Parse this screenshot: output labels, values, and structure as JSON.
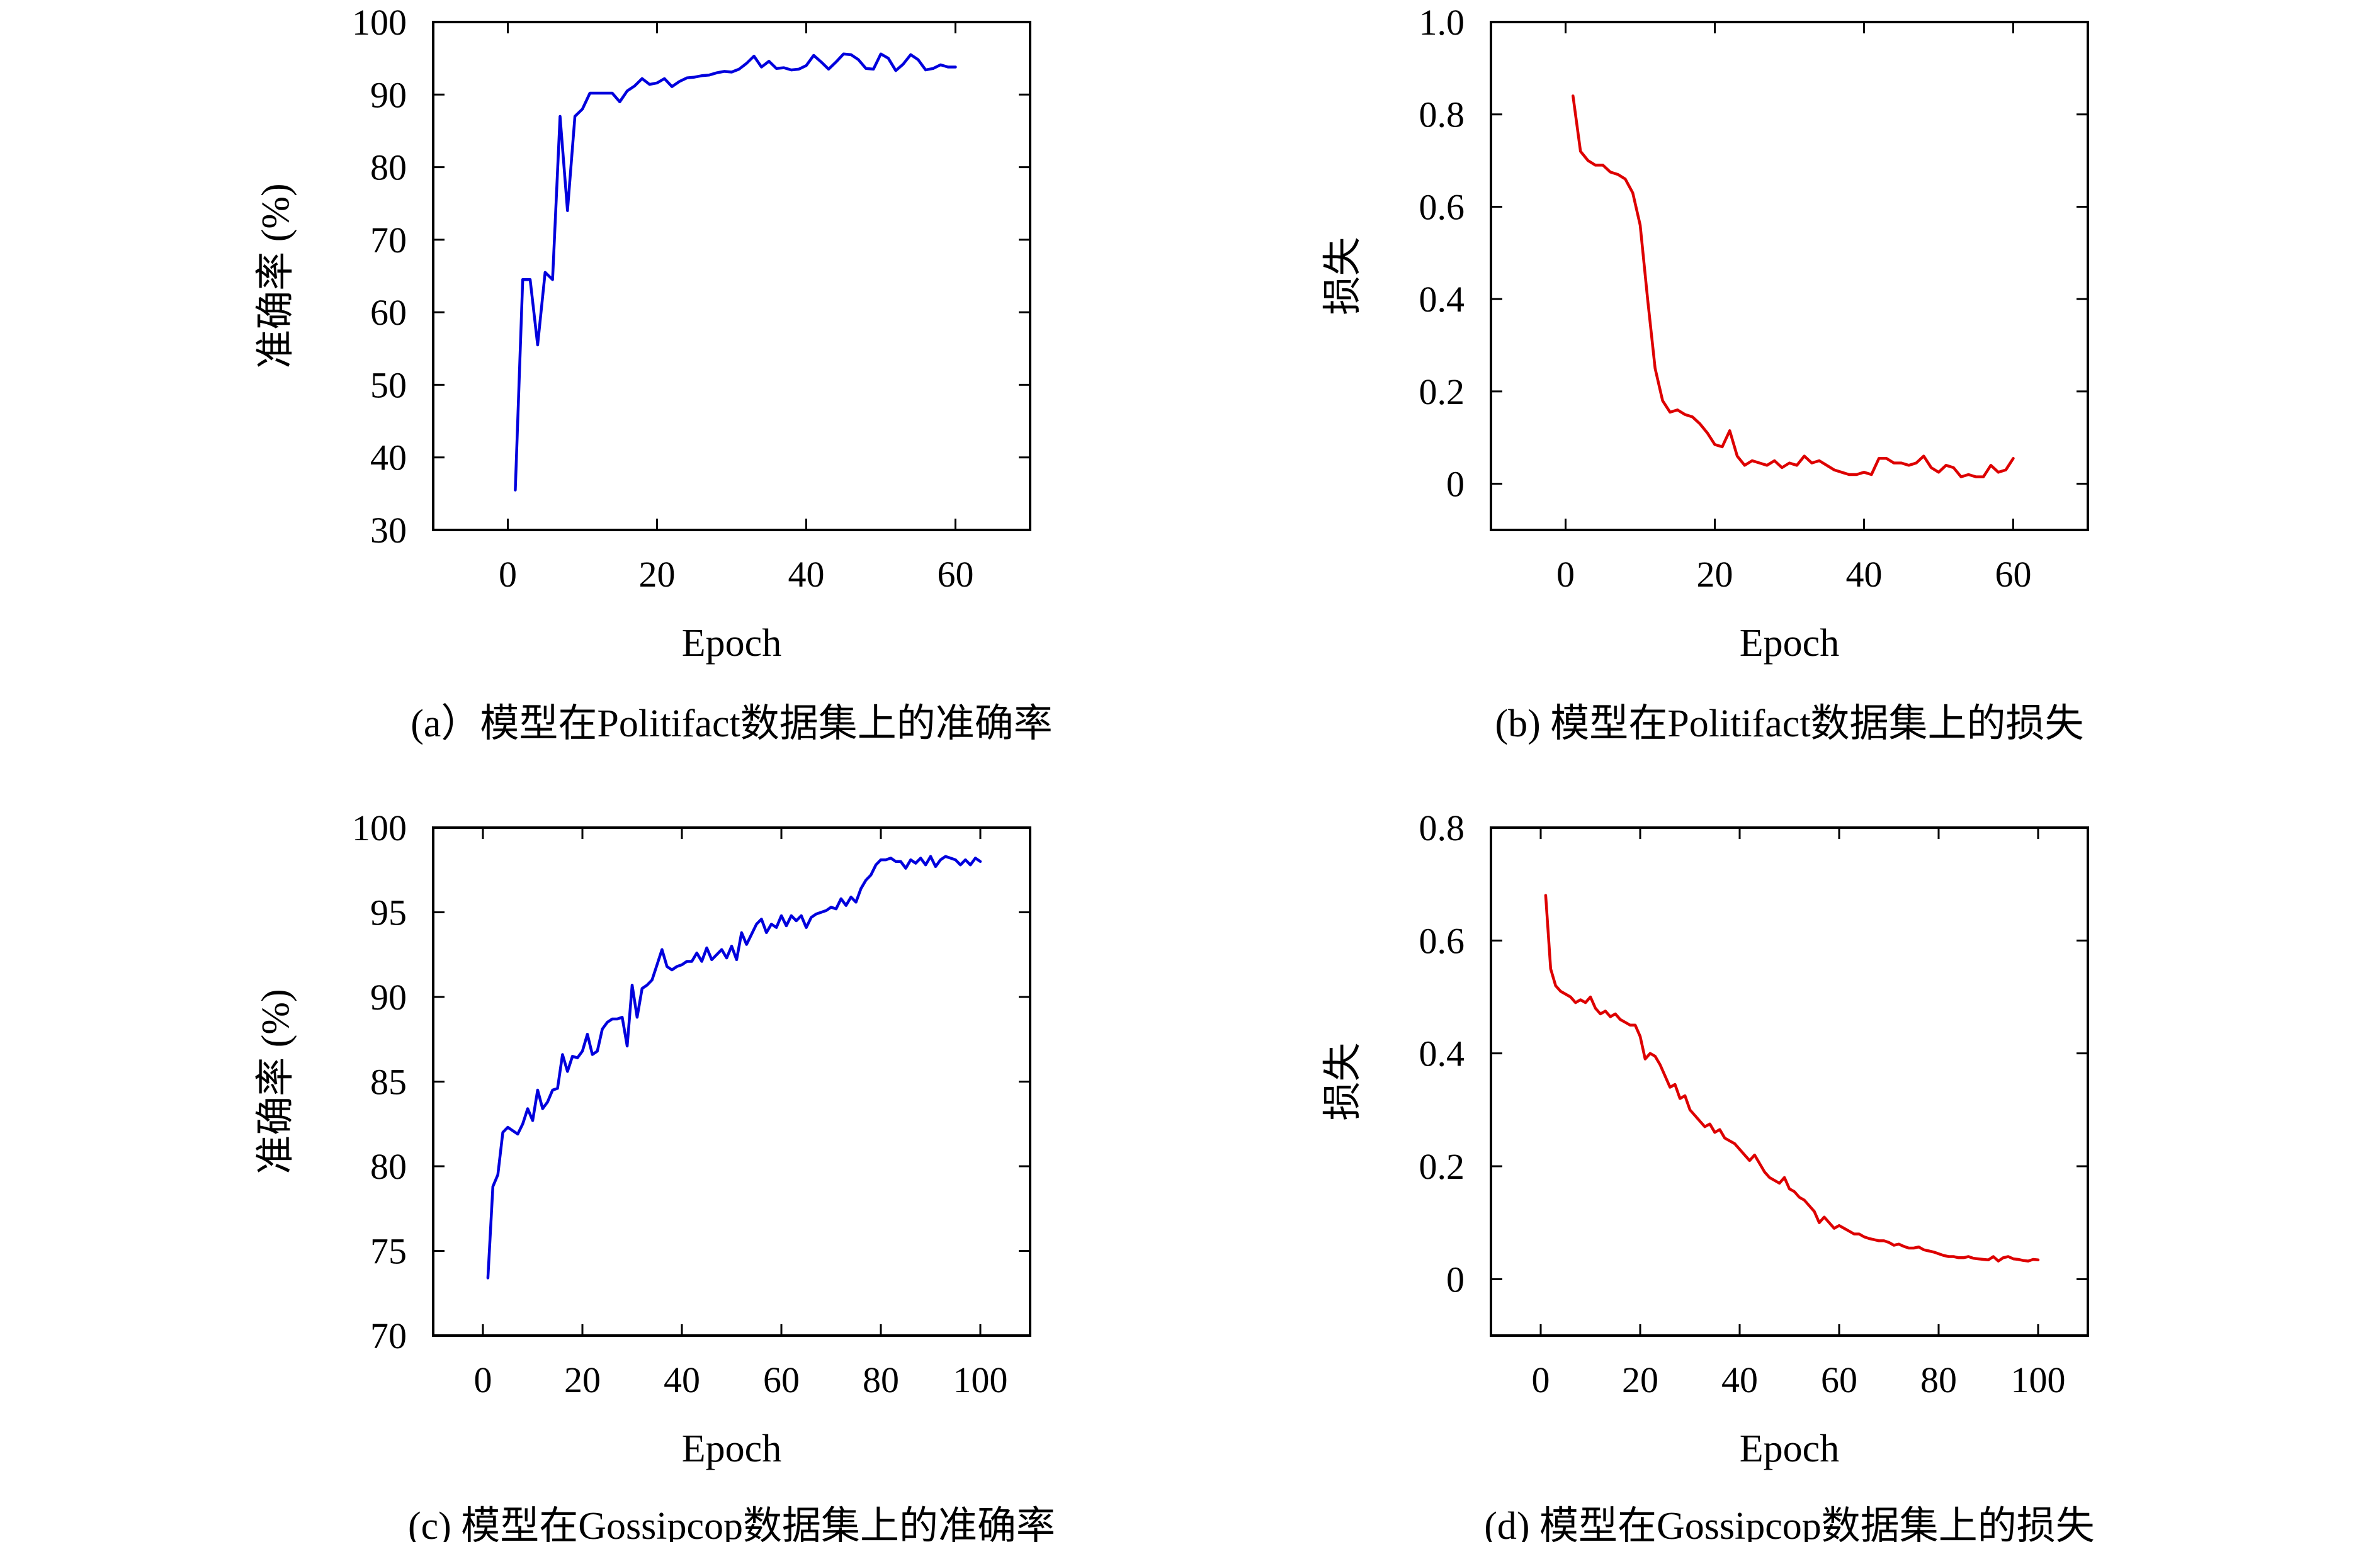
{
  "figure": {
    "colors": {
      "accuracy": "#0000dd",
      "loss": "#dd0000",
      "axis": "#000000"
    }
  },
  "chart_data": [
    {
      "id": "a",
      "type": "line",
      "caption": "(a）模型在Politifact数据集上的准确率",
      "xlabel": "Epoch",
      "ylabel": "准确率 (%)",
      "xlim": [
        -10,
        70
      ],
      "ylim": [
        30,
        100
      ],
      "xticks": [
        0,
        20,
        40,
        60
      ],
      "yticks": [
        30,
        40,
        50,
        60,
        70,
        80,
        90,
        100
      ],
      "ytick_labels": [
        "30",
        "40",
        "50",
        "60",
        "70",
        "80",
        "90",
        "100"
      ],
      "grid": false,
      "color": "#0000dd",
      "series": [
        {
          "x": [
            1,
            2,
            3,
            4,
            5,
            6,
            7,
            8,
            9,
            10,
            11,
            12,
            13,
            14,
            15,
            16,
            17,
            18,
            19,
            20,
            21,
            22,
            23,
            24,
            25,
            26,
            27,
            28,
            29,
            30,
            31,
            32,
            33,
            34,
            35,
            36,
            37,
            38,
            39,
            40,
            41,
            42,
            43,
            44,
            45,
            46,
            47,
            48,
            49,
            50,
            51,
            52,
            53,
            54,
            55,
            56,
            57,
            58,
            59,
            60
          ],
          "values": [
            35.5,
            64.5,
            64.5,
            55.5,
            65.5,
            64.5,
            87,
            74,
            87,
            88,
            90.2,
            90.2,
            90.2,
            90.2,
            89,
            90.5,
            91.2,
            92.2,
            91.4,
            91.6,
            92.2,
            91.1,
            91.8,
            92.3,
            92.4,
            92.6,
            92.7,
            93,
            93.2,
            93.1,
            93.5,
            94.3,
            95.3,
            93.8,
            94.6,
            93.6,
            93.7,
            93.4,
            93.5,
            94,
            95.4,
            94.5,
            93.5,
            94.5,
            95.6,
            95.5,
            94.8,
            93.6,
            93.5,
            95.6,
            95,
            93.3,
            94.2,
            95.5,
            94.8,
            93.4,
            93.6,
            94.1,
            93.8,
            93.8
          ]
        }
      ]
    },
    {
      "id": "b",
      "type": "line",
      "caption": "(b) 模型在Politifact数据集上的损失",
      "xlabel": "Epoch",
      "ylabel": "损失",
      "xlim": [
        -10,
        70
      ],
      "ylim": [
        -0.1,
        1.0
      ],
      "xticks": [
        0,
        20,
        40,
        60
      ],
      "yticks": [
        0,
        0.2,
        0.4,
        0.6,
        0.8,
        1.0
      ],
      "ytick_labels": [
        "0",
        "0.2",
        "0.4",
        "0.6",
        "0.8",
        "1.0"
      ],
      "grid": false,
      "color": "#dd0000",
      "series": [
        {
          "x": [
            1,
            2,
            3,
            4,
            5,
            6,
            7,
            8,
            9,
            10,
            11,
            12,
            13,
            14,
            15,
            16,
            17,
            18,
            19,
            20,
            21,
            22,
            23,
            24,
            25,
            26,
            27,
            28,
            29,
            30,
            31,
            32,
            33,
            34,
            35,
            36,
            37,
            38,
            39,
            40,
            41,
            42,
            43,
            44,
            45,
            46,
            47,
            48,
            49,
            50,
            51,
            52,
            53,
            54,
            55,
            56,
            57,
            58,
            59,
            60
          ],
          "values": [
            0.84,
            0.72,
            0.7,
            0.69,
            0.69,
            0.675,
            0.67,
            0.66,
            0.63,
            0.56,
            0.4,
            0.25,
            0.18,
            0.155,
            0.16,
            0.15,
            0.145,
            0.13,
            0.11,
            0.085,
            0.08,
            0.115,
            0.06,
            0.04,
            0.05,
            0.045,
            0.04,
            0.05,
            0.035,
            0.045,
            0.04,
            0.06,
            0.045,
            0.05,
            0.04,
            0.03,
            0.025,
            0.02,
            0.02,
            0.025,
            0.02,
            0.055,
            0.055,
            0.045,
            0.045,
            0.04,
            0.045,
            0.06,
            0.035,
            0.025,
            0.04,
            0.035,
            0.015,
            0.02,
            0.015,
            0.015,
            0.04,
            0.025,
            0.03,
            0.055
          ]
        }
      ]
    },
    {
      "id": "c",
      "type": "line",
      "caption": "(c) 模型在Gossipcop数据集上的准确率",
      "xlabel": "Epoch",
      "ylabel": "准确率 (%)",
      "xlim": [
        -10,
        110
      ],
      "ylim": [
        70,
        100
      ],
      "xticks": [
        0,
        20,
        40,
        60,
        80,
        100
      ],
      "yticks": [
        70,
        75,
        80,
        85,
        90,
        95,
        100
      ],
      "ytick_labels": [
        "70",
        "75",
        "80",
        "85",
        "90",
        "95",
        "100"
      ],
      "grid": false,
      "color": "#0000dd",
      "series": [
        {
          "x": [
            1,
            2,
            3,
            4,
            5,
            6,
            7,
            8,
            9,
            10,
            11,
            12,
            13,
            14,
            15,
            16,
            17,
            18,
            19,
            20,
            21,
            22,
            23,
            24,
            25,
            26,
            27,
            28,
            29,
            30,
            31,
            32,
            33,
            34,
            35,
            36,
            37,
            38,
            39,
            40,
            41,
            42,
            43,
            44,
            45,
            46,
            47,
            48,
            49,
            50,
            51,
            52,
            53,
            54,
            55,
            56,
            57,
            58,
            59,
            60,
            61,
            62,
            63,
            64,
            65,
            66,
            67,
            68,
            69,
            70,
            71,
            72,
            73,
            74,
            75,
            76,
            77,
            78,
            79,
            80,
            81,
            82,
            83,
            84,
            85,
            86,
            87,
            88,
            89,
            90,
            91,
            92,
            93,
            94,
            95,
            96,
            97,
            98,
            99,
            100
          ],
          "values": [
            73.4,
            78.8,
            79.5,
            82,
            82.3,
            82.1,
            81.9,
            82.5,
            83.4,
            82.7,
            84.5,
            83.4,
            83.8,
            84.5,
            84.6,
            86.6,
            85.6,
            86.5,
            86.4,
            86.8,
            87.8,
            86.6,
            86.8,
            88.1,
            88.5,
            88.7,
            88.7,
            88.8,
            87.1,
            90.7,
            88.8,
            90.5,
            90.7,
            91,
            91.9,
            92.8,
            91.8,
            91.6,
            91.8,
            91.9,
            92.1,
            92.1,
            92.6,
            92.1,
            92.9,
            92.2,
            92.5,
            92.8,
            92.3,
            93,
            92.2,
            93.8,
            93.1,
            93.7,
            94.3,
            94.6,
            93.8,
            94.3,
            94.1,
            94.8,
            94.2,
            94.8,
            94.5,
            94.8,
            94.1,
            94.7,
            94.9,
            95,
            95.1,
            95.3,
            95.2,
            95.8,
            95.4,
            95.9,
            95.6,
            96.4,
            96.9,
            97.2,
            97.8,
            98.1,
            98.1,
            98.2,
            98,
            98,
            97.6,
            98.1,
            97.9,
            98.2,
            97.8,
            98.3,
            97.7,
            98.1,
            98.3,
            98.2,
            98.1,
            97.8,
            98.1,
            97.8,
            98.2,
            98
          ]
        }
      ]
    },
    {
      "id": "d",
      "type": "line",
      "caption": "(d) 模型在Gossipcop数据集上的损失",
      "xlabel": "Epoch",
      "ylabel": "损失",
      "xlim": [
        -10,
        110
      ],
      "ylim": [
        -0.1,
        0.8
      ],
      "xticks": [
        0,
        20,
        40,
        60,
        80,
        100
      ],
      "yticks": [
        0,
        0.2,
        0.4,
        0.6,
        0.8
      ],
      "ytick_labels": [
        "0",
        "0.2",
        "0.4",
        "0.6",
        "0.8"
      ],
      "grid": false,
      "color": "#dd0000",
      "series": [
        {
          "x": [
            1,
            2,
            3,
            4,
            5,
            6,
            7,
            8,
            9,
            10,
            11,
            12,
            13,
            14,
            15,
            16,
            17,
            18,
            19,
            20,
            21,
            22,
            23,
            24,
            25,
            26,
            27,
            28,
            29,
            30,
            31,
            32,
            33,
            34,
            35,
            36,
            37,
            38,
            39,
            40,
            41,
            42,
            43,
            44,
            45,
            46,
            47,
            48,
            49,
            50,
            51,
            52,
            53,
            54,
            55,
            56,
            57,
            58,
            59,
            60,
            61,
            62,
            63,
            64,
            65,
            66,
            67,
            68,
            69,
            70,
            71,
            72,
            73,
            74,
            75,
            76,
            77,
            78,
            79,
            80,
            81,
            82,
            83,
            84,
            85,
            86,
            87,
            88,
            89,
            90,
            91,
            92,
            93,
            94,
            95,
            96,
            97,
            98,
            99,
            100
          ],
          "values": [
            0.68,
            0.55,
            0.52,
            0.51,
            0.505,
            0.5,
            0.49,
            0.495,
            0.49,
            0.5,
            0.48,
            0.47,
            0.475,
            0.465,
            0.47,
            0.46,
            0.455,
            0.45,
            0.45,
            0.43,
            0.39,
            0.4,
            0.395,
            0.38,
            0.36,
            0.34,
            0.345,
            0.32,
            0.325,
            0.3,
            0.29,
            0.28,
            0.27,
            0.275,
            0.26,
            0.265,
            0.25,
            0.245,
            0.24,
            0.23,
            0.22,
            0.21,
            0.22,
            0.205,
            0.19,
            0.18,
            0.175,
            0.17,
            0.18,
            0.16,
            0.155,
            0.145,
            0.14,
            0.13,
            0.12,
            0.1,
            0.11,
            0.1,
            0.09,
            0.095,
            0.09,
            0.085,
            0.08,
            0.08,
            0.075,
            0.072,
            0.07,
            0.068,
            0.068,
            0.065,
            0.06,
            0.062,
            0.058,
            0.055,
            0.055,
            0.057,
            0.052,
            0.05,
            0.048,
            0.045,
            0.042,
            0.04,
            0.04,
            0.038,
            0.038,
            0.04,
            0.037,
            0.036,
            0.035,
            0.034,
            0.04,
            0.032,
            0.038,
            0.04,
            0.036,
            0.035,
            0.033,
            0.032,
            0.035,
            0.034
          ]
        }
      ]
    }
  ]
}
